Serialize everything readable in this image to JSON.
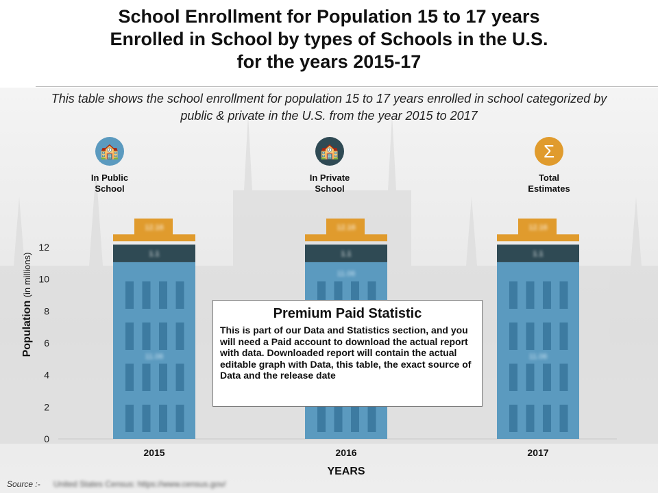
{
  "title_lines": [
    "School Enrollment for Population 15 to 17 years",
    "Enrolled in School by types of Schools  in the U.S.",
    "for the years 2015-17"
  ],
  "subtitle": "This table shows the school enrollment for population 15 to 17 years enrolled in school categorized by public & private in the U.S. from the year 2015 to 2017",
  "legend": [
    {
      "label1": "In Public",
      "label2": "School",
      "icon": "school-building-icon",
      "color": "#5b9abf"
    },
    {
      "label1": "In Private",
      "label2": "School",
      "icon": "school-clock-icon",
      "color": "#2f4a54"
    },
    {
      "label1": "Total",
      "label2": "Estimates",
      "icon": "sigma-icon",
      "color": "#e09b2d"
    }
  ],
  "paywall": {
    "title": "Premium Paid Statistic",
    "text": "This is part of our Data and Statistics section, and you will need a Paid account to download the actual report with data. Downloaded report will contain the actual editable graph with Data, this table, the exact source of Data and the release date"
  },
  "source_label": "Source :-",
  "source_value": "United States Census: https://www.census.gov/",
  "chart_data": {
    "type": "bar",
    "stacked": true,
    "categories": [
      "2015",
      "2016",
      "2017"
    ],
    "series": [
      {
        "name": "In Public School",
        "values": [
          11.06,
          11.06,
          11.06
        ],
        "color": "#5b9abf"
      },
      {
        "name": "In Private School",
        "values": [
          1.1,
          1.1,
          1.1
        ],
        "color": "#2f4a54"
      }
    ],
    "totals": {
      "name": "Total Estimates",
      "values": [
        12.16,
        12.16,
        12.16
      ],
      "color": "#e09b2d"
    },
    "xlabel": "YEARS",
    "ylabel": "Population",
    "ylabel_unit": "(in millions)",
    "ylim": [
      0,
      12
    ],
    "yticks": [
      0,
      2,
      4,
      6,
      8,
      10,
      12
    ],
    "grid": false
  }
}
